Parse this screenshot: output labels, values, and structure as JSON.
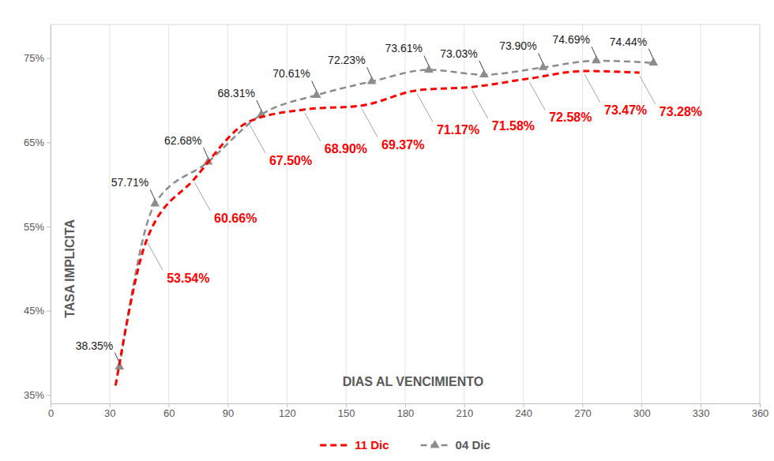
{
  "chart_data": {
    "type": "line",
    "x_label": "DIAS AL VENCIMIENTO",
    "y_label": "TASA IMPLICITA",
    "xlim": [
      0,
      360
    ],
    "xticks": [
      0,
      30,
      60,
      90,
      120,
      150,
      180,
      210,
      240,
      270,
      300,
      330,
      360
    ],
    "ylim": [
      34,
      79
    ],
    "yticks": [
      {
        "value": 35,
        "label": "35%"
      },
      {
        "value": 45,
        "label": "45%"
      },
      {
        "value": 55,
        "label": "55%"
      },
      {
        "value": 65,
        "label": "65%"
      },
      {
        "value": 75,
        "label": "75%"
      }
    ],
    "grid": true,
    "legend": "bottom",
    "data_labels": true,
    "series": [
      {
        "name": "11 Dic",
        "color": "#ff0000",
        "line_style": "dashed",
        "marker": "none",
        "x": [
          33,
          49,
          73,
          101,
          129,
          158,
          186,
          214,
          243,
          271,
          299
        ],
        "values": [
          36.1,
          53.54,
          60.66,
          67.5,
          68.9,
          69.37,
          71.17,
          71.58,
          72.58,
          73.47,
          73.28
        ],
        "value_labels": [
          null,
          "53.54%",
          "60.66%",
          "67.50%",
          "68.90%",
          "69.37%",
          "71.17%",
          "71.58%",
          "72.58%",
          "73.47%",
          "73.28%"
        ]
      },
      {
        "name": "04 Dic",
        "color": "#8c8c8c",
        "line_style": "dashed",
        "marker": "triangle",
        "x": [
          35,
          53,
          80,
          107,
          135,
          163,
          192,
          220,
          250,
          277,
          306
        ],
        "values": [
          38.35,
          57.71,
          62.68,
          68.31,
          70.61,
          72.23,
          73.61,
          73.03,
          73.9,
          74.69,
          74.44
        ],
        "value_labels": [
          "38.35%",
          "57.71%",
          "62.68%",
          "68.31%",
          "70.61%",
          "72.23%",
          "73.61%",
          "73.03%",
          "73.90%",
          "74.69%",
          "74.44%"
        ]
      }
    ]
  }
}
